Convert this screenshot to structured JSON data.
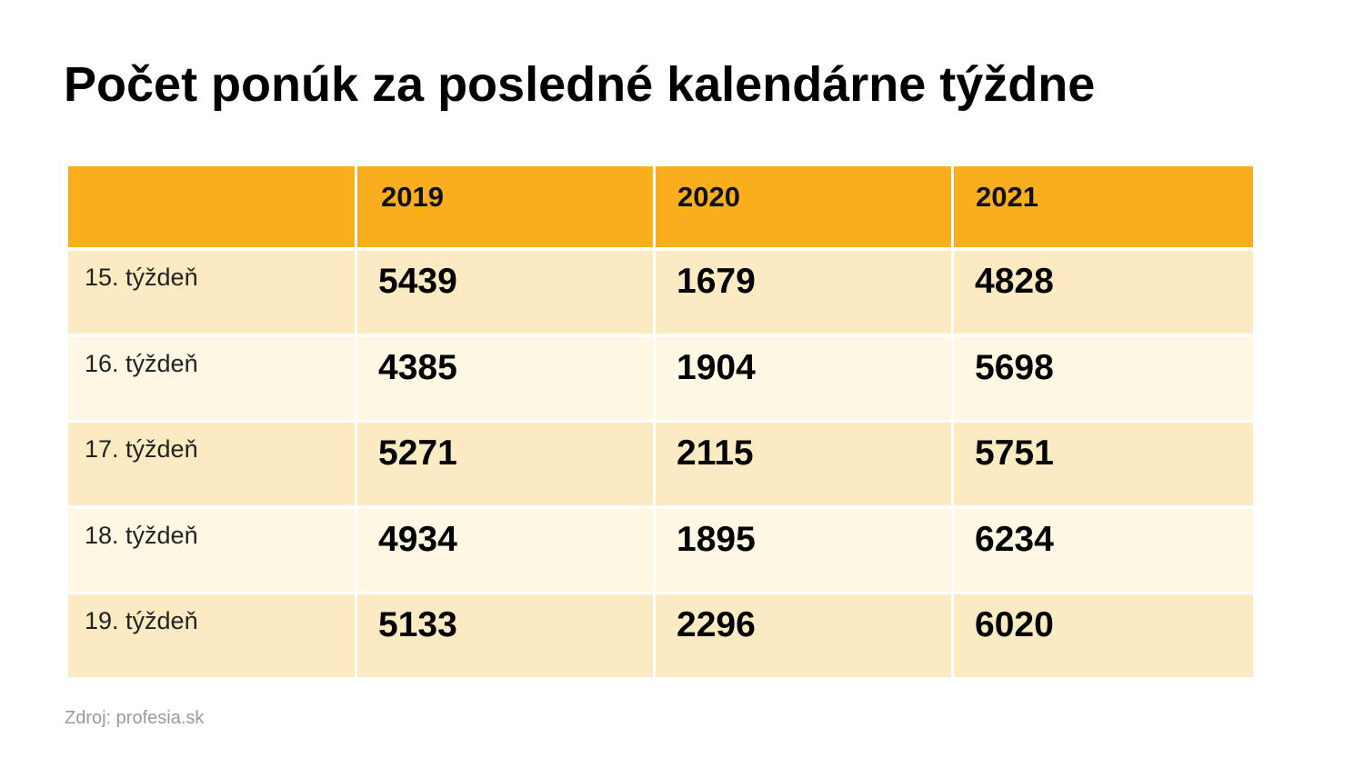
{
  "title": "Počet ponúk za posledné kalendárne týždne",
  "table": {
    "columns": [
      "2019",
      "2020",
      "2021"
    ],
    "rows": [
      {
        "label": "15. týždeň",
        "values": [
          5439,
          1679,
          4828
        ]
      },
      {
        "label": "16. týždeň",
        "values": [
          4385,
          1904,
          5698
        ]
      },
      {
        "label": "17. týždeň",
        "values": [
          5271,
          2115,
          5751
        ]
      },
      {
        "label": "18. týždeň",
        "values": [
          4934,
          1895,
          6234
        ]
      },
      {
        "label": "19. týždeň",
        "values": [
          5133,
          2296,
          6020
        ]
      }
    ]
  },
  "source": "Zdroj: profesia.sk"
}
